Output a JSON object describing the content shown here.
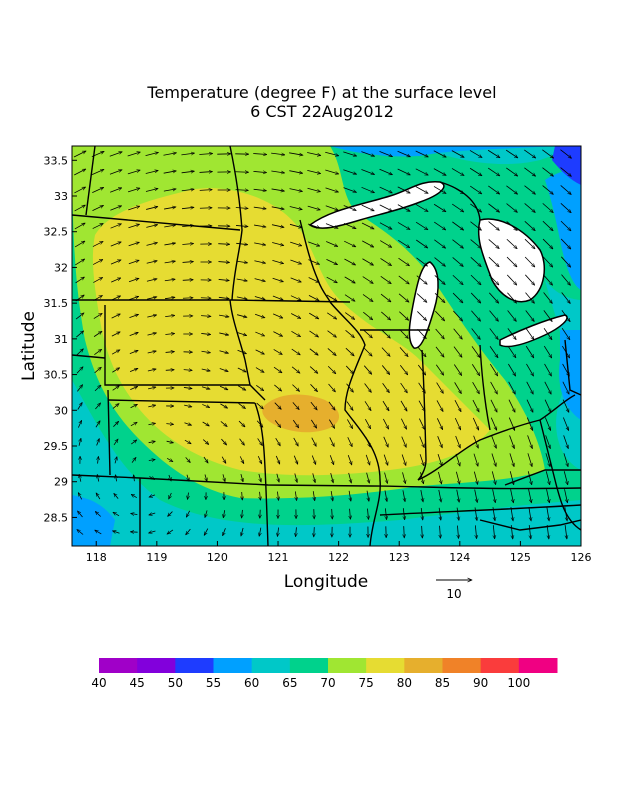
{
  "title": {
    "line1": "Temperature (degree F) at the surface level",
    "line2": "6 CST 22Aug2012"
  },
  "axes": {
    "xlabel": "Longitude",
    "ylabel": "Latitude",
    "x_ticks": [
      "118",
      "119",
      "120",
      "121",
      "122",
      "123",
      "124",
      "125",
      "126"
    ],
    "x_range": [
      117.6,
      126
    ],
    "y_ticks": [
      "28.5",
      "29",
      "29.5",
      "30",
      "30.5",
      "31",
      "31.5",
      "32",
      "32.5",
      "33",
      "33.5"
    ],
    "y_range": [
      28.1,
      33.7
    ]
  },
  "vector_reference": {
    "label": "10",
    "magnitude": 10
  },
  "colorbar": {
    "labels": [
      "40",
      "45",
      "50",
      "55",
      "60",
      "65",
      "70",
      "75",
      "80",
      "85",
      "90",
      "100"
    ],
    "colors": [
      "#a000c8",
      "#8200dc",
      "#1e3cff",
      "#00a0ff",
      "#00c8c8",
      "#00d28c",
      "#a0e632",
      "#e6dc32",
      "#e6af2d",
      "#f08228",
      "#fa3c3c",
      "#f00082"
    ]
  },
  "map": {
    "field": "surface temperature",
    "max_region_color": "#e6af2d",
    "dominant_colors": [
      "#e6dc32",
      "#a0e632",
      "#00d28c",
      "#00c8c8",
      "#00a0ff",
      "#1e3cff"
    ]
  }
}
